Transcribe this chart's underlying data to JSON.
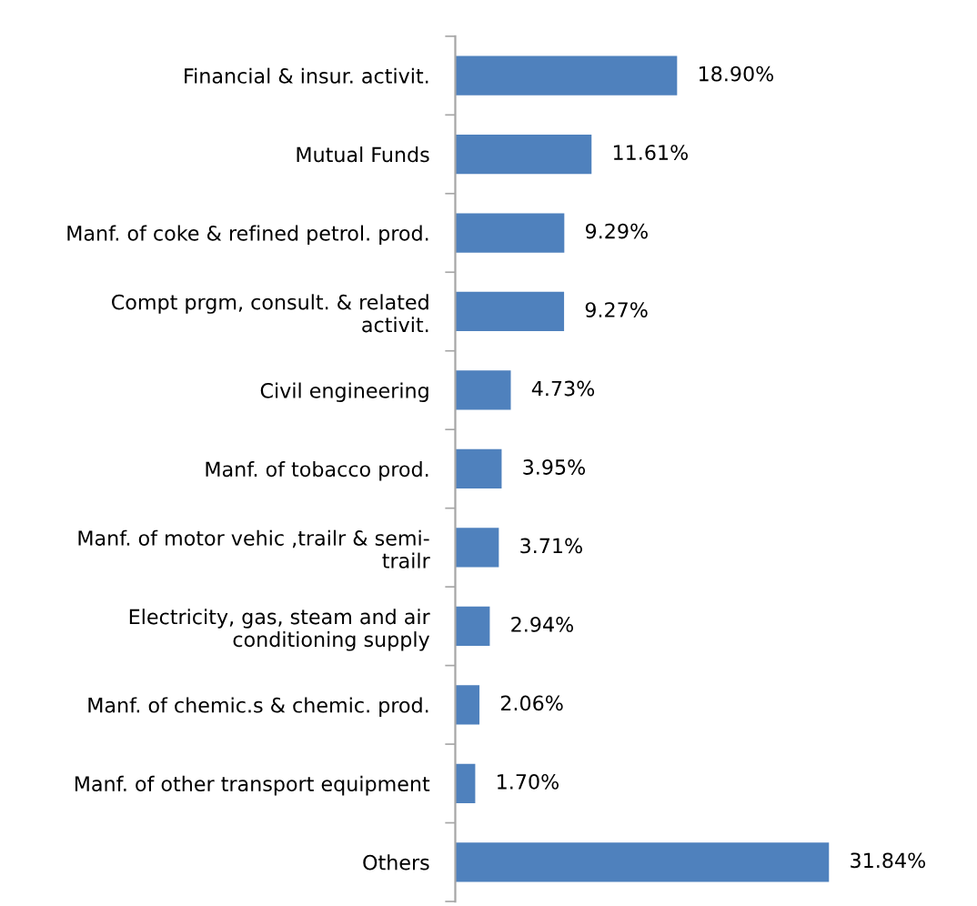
{
  "chart_data": {
    "type": "bar",
    "orientation": "horizontal",
    "categories": [
      "Financial & insur. activit.",
      "Mutual Funds",
      "Manf. of coke & refined petrol. prod.",
      "Compt prgm, consult. & related\nactivit.",
      "Civil engineering",
      "Manf. of tobacco prod.",
      "Manf. of motor vehic ,trailr & semi-\ntrailr",
      "Electricity, gas, steam and air\nconditioning supply",
      "Manf. of chemic.s & chemic. prod.",
      "Manf. of other transport equipment",
      "Others"
    ],
    "values": [
      18.9,
      11.61,
      9.29,
      9.27,
      4.73,
      3.95,
      3.71,
      2.94,
      2.06,
      1.7,
      31.84
    ],
    "value_labels": [
      "18.90%",
      "11.61%",
      "9.29%",
      "9.27%",
      "4.73%",
      "3.95%",
      "3.71%",
      "2.94%",
      "2.06%",
      "1.70%",
      "31.84%"
    ],
    "color": "#4f81bd",
    "grid": false,
    "legend": false
  }
}
